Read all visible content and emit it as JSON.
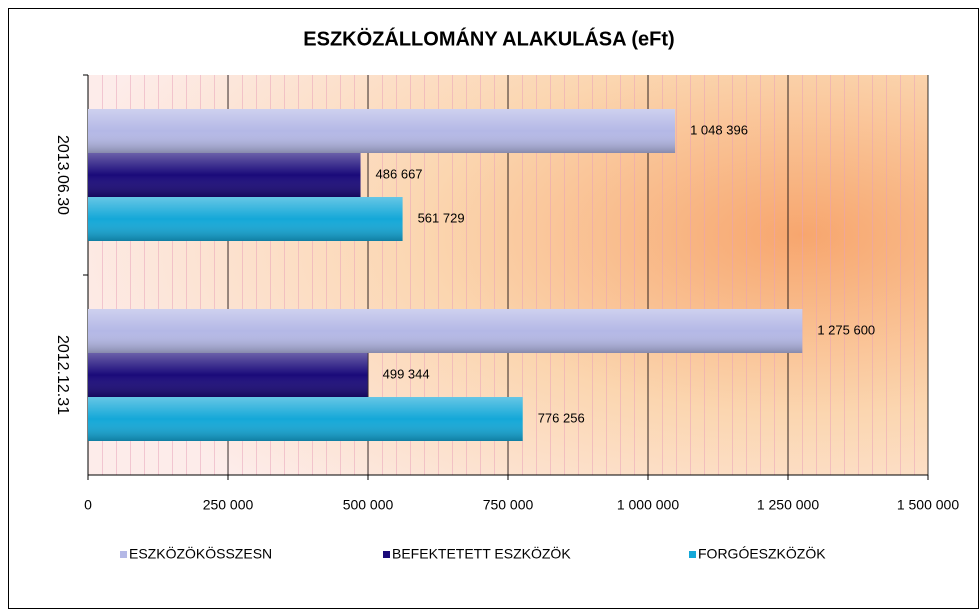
{
  "chart_data": {
    "type": "hbar",
    "title": "ESZKÖZÁLLOMÁNY ALAKULÁSA (eFt)",
    "categories": [
      "2013.06.30",
      "2012.12.31"
    ],
    "series": [
      {
        "name": "ESZKÖZÖKÖSSZESN",
        "color": "#b4b8e6",
        "values": [
          1048396,
          1275600
        ],
        "value_labels": [
          "1 048 396",
          "1 275 600"
        ]
      },
      {
        "name": "BEFEKTETETT ESZKÖZÖK",
        "color": "#1a0a7a",
        "values": [
          486667,
          499344
        ],
        "value_labels": [
          "486 667",
          "499 344"
        ]
      },
      {
        "name": "FORGÓESZKÖZÖK",
        "color": "#14a8d8",
        "values": [
          561729,
          776256
        ],
        "value_labels": [
          "561 729",
          "776 256"
        ]
      }
    ],
    "xlim": [
      0,
      1500000
    ],
    "xticks": [
      0,
      {
        "value": 250000,
        "label": "250 000"
      },
      {
        "value": 500000,
        "label": "500 000"
      },
      {
        "value": 750000,
        "label": "750 000"
      },
      {
        "value": 1000000,
        "label": "1 000 000"
      },
      {
        "value": 1250000,
        "label": "1 250 000"
      },
      {
        "value": 1500000,
        "label": "1 500 000"
      }
    ],
    "grid": true,
    "legend": "bottom"
  }
}
